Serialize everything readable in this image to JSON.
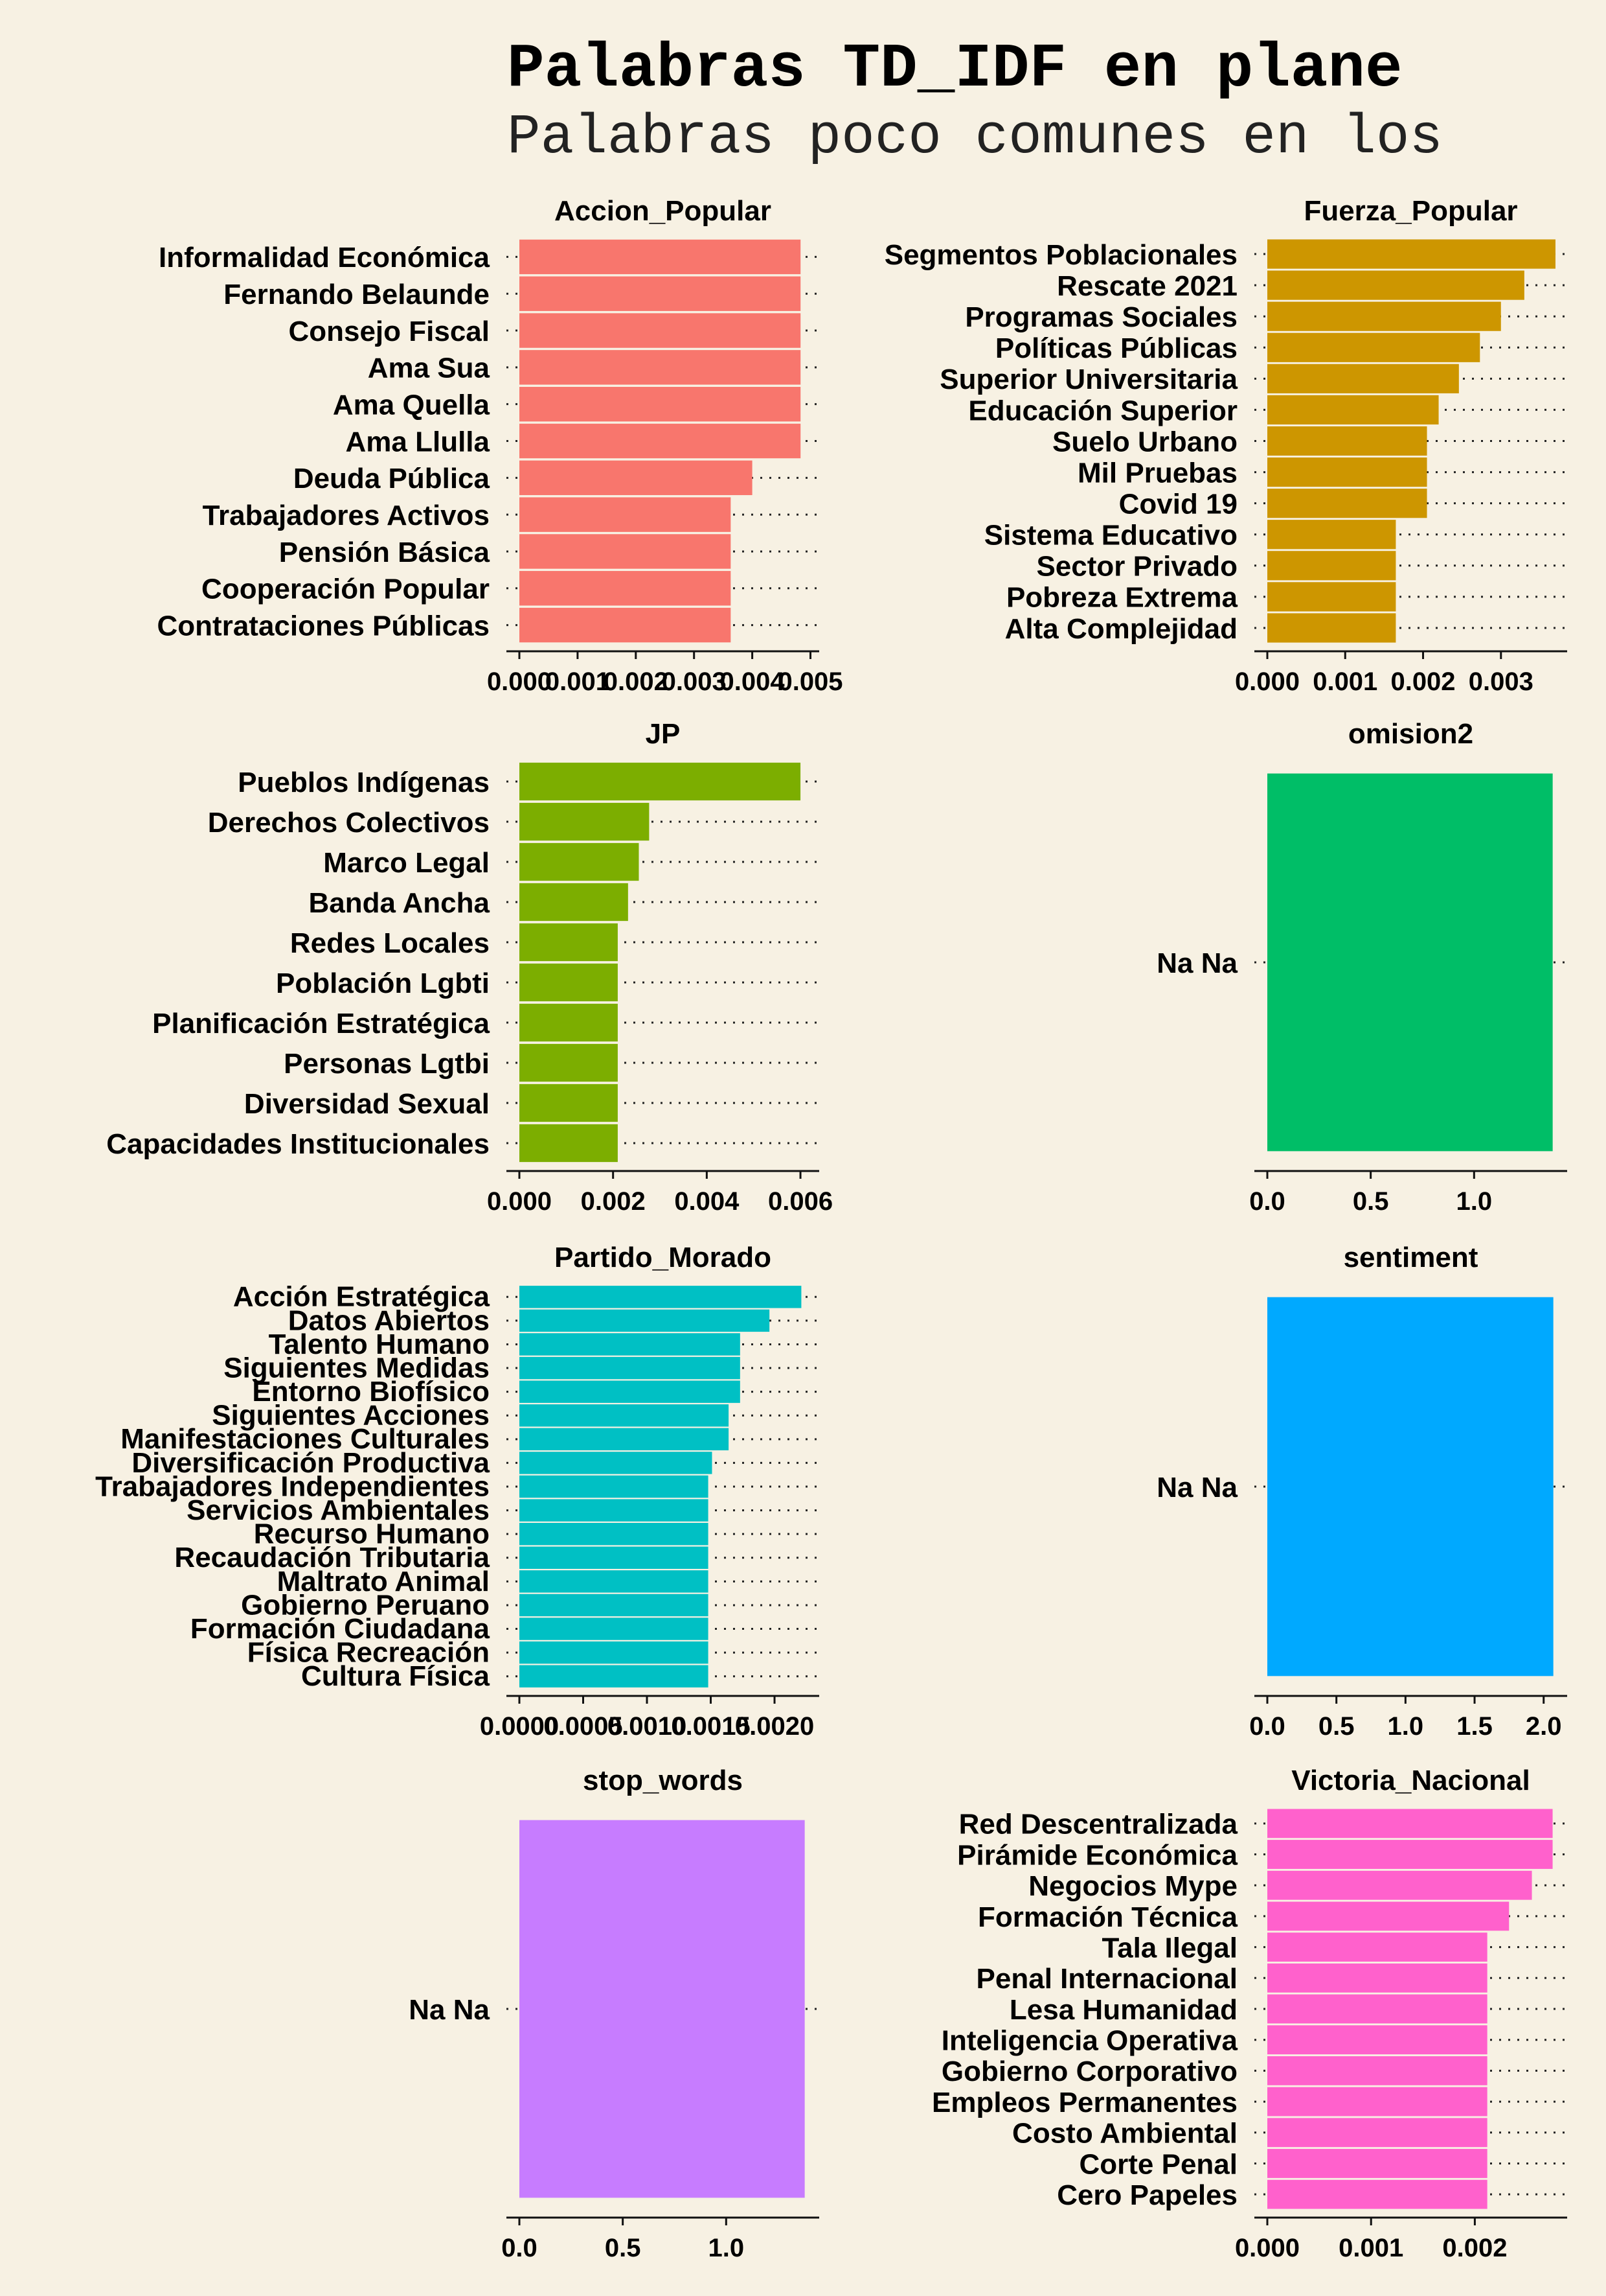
{
  "title": "Palabras TD_IDF en plane",
  "subtitle": "Palabras poco comunes en los",
  "colors": {
    "background": "#f7f1e3",
    "Accion_Popular": "#f8766d",
    "Fuerza_Popular": "#cd9600",
    "JP": "#7cae00",
    "omision2": "#00be67",
    "Partido_Morado": "#00c0c4",
    "sentiment": "#00a9ff",
    "stop_words": "#c77cff",
    "Victoria_Nacional": "#ff61cc"
  },
  "chart_data": [
    {
      "type": "bar",
      "orientation": "horizontal",
      "title": "Accion_Popular",
      "categories": [
        "Informalidad Económica",
        "Fernando Belaunde",
        "Consejo Fiscal",
        "Ama Sua",
        "Ama Quella",
        "Ama Llulla",
        "Deuda Pública",
        "Trabajadores Activos",
        "Pensión Básica",
        "Cooperación Popular",
        "Contrataciones Públicas"
      ],
      "values": [
        0.00483,
        0.00483,
        0.00483,
        0.00483,
        0.00483,
        0.00483,
        0.004,
        0.00363,
        0.00363,
        0.00363,
        0.00363
      ],
      "xlim": [
        0,
        0.00515
      ],
      "ticks": [
        0,
        0.001,
        0.002,
        0.003,
        0.004,
        0.005
      ],
      "tick_labels": [
        "0.000",
        "0.001",
        "0.002",
        "0.003",
        "0.004",
        "0.005"
      ]
    },
    {
      "type": "bar",
      "orientation": "horizontal",
      "title": "Fuerza_Popular",
      "categories": [
        "Segmentos Poblacionales",
        "Rescate 2021",
        "Programas Sociales",
        "Políticas Públicas",
        "Superior Universitaria",
        "Educación Superior",
        "Suelo Urbano",
        "Mil Pruebas",
        "Covid 19",
        "Sistema Educativo",
        "Sector Privado",
        "Pobreza Extrema",
        "Alta Complejidad"
      ],
      "values": [
        0.0037,
        0.0033,
        0.003,
        0.00273,
        0.00246,
        0.0022,
        0.00205,
        0.00205,
        0.00205,
        0.00165,
        0.00165,
        0.00165,
        0.00165
      ],
      "xlim": [
        0,
        0.00385
      ],
      "ticks": [
        0,
        0.001,
        0.002,
        0.003
      ],
      "tick_labels": [
        "0.000",
        "0.001",
        "0.002",
        "0.003"
      ]
    },
    {
      "type": "bar",
      "orientation": "horizontal",
      "title": "JP",
      "categories": [
        "Pueblos Indígenas",
        "Derechos Colectivos",
        "Marco Legal",
        "Banda Ancha",
        "Redes Locales",
        "Población Lgbti",
        "Planificación Estratégica",
        "Personas Lgtbi",
        "Diversidad Sexual",
        "Capacidades Institucionales"
      ],
      "values": [
        0.006,
        0.00277,
        0.00255,
        0.00232,
        0.0021,
        0.0021,
        0.0021,
        0.0021,
        0.0021,
        0.0021
      ],
      "xlim": [
        0,
        0.0064
      ],
      "ticks": [
        0,
        0.002,
        0.004,
        0.006
      ],
      "tick_labels": [
        "0.000",
        "0.002",
        "0.004",
        "0.006"
      ]
    },
    {
      "type": "bar",
      "orientation": "horizontal",
      "title": "omision2",
      "categories": [
        "Na Na"
      ],
      "values": [
        1.38
      ],
      "xlim": [
        0,
        1.45
      ],
      "ticks": [
        0,
        0.5,
        1.0
      ],
      "tick_labels": [
        "0.0",
        "0.5",
        "1.0"
      ]
    },
    {
      "type": "bar",
      "orientation": "horizontal",
      "title": "Partido_Morado",
      "categories": [
        "Acción Estratégica",
        "Datos Abiertos",
        "Talento Humano",
        "Siguientes Medidas",
        "Entorno Biofísico",
        "Siguientes Acciones",
        "Manifestaciones Culturales",
        "Diversificación Productiva",
        "Trabajadores Independientes",
        "Servicios Ambientales",
        "Recurso Humano",
        "Recaudación Tributaria",
        "Maltrato Animal",
        "Gobierno Peruano",
        "Formación Ciudadana",
        "Física Recreación",
        "Cultura Física"
      ],
      "values": [
        0.00221,
        0.00196,
        0.00173,
        0.00173,
        0.00173,
        0.00164,
        0.00164,
        0.00151,
        0.00148,
        0.00148,
        0.00148,
        0.00148,
        0.00148,
        0.00148,
        0.00148,
        0.00148,
        0.00148
      ],
      "xlim": [
        0,
        0.00235
      ],
      "ticks": [
        0,
        0.0005,
        0.001,
        0.0015,
        0.002
      ],
      "tick_labels": [
        "0.0000",
        "0.0005",
        "0.0010",
        "0.0015",
        "0.0020"
      ]
    },
    {
      "type": "bar",
      "orientation": "horizontal",
      "title": "sentiment",
      "categories": [
        "Na Na"
      ],
      "values": [
        2.07
      ],
      "xlim": [
        0,
        2.17
      ],
      "ticks": [
        0,
        0.5,
        1.0,
        1.5,
        2.0
      ],
      "tick_labels": [
        "0.0",
        "0.5",
        "1.0",
        "1.5",
        "2.0"
      ]
    },
    {
      "type": "bar",
      "orientation": "horizontal",
      "title": "stop_words",
      "categories": [
        "Na Na"
      ],
      "values": [
        1.38
      ],
      "xlim": [
        0,
        1.45
      ],
      "ticks": [
        0,
        0.5,
        1.0
      ],
      "tick_labels": [
        "0.0",
        "0.5",
        "1.0"
      ]
    },
    {
      "type": "bar",
      "orientation": "horizontal",
      "title": "Victoria_Nacional",
      "categories": [
        "Red Descentralizada",
        "Pirámide Económica",
        "Negocios Mype",
        "Formación Técnica",
        "Tala Ilegal",
        "Penal Internacional",
        "Lesa Humanidad",
        "Inteligencia Operativa",
        "Gobierno Corporativo",
        "Empleos Permanentes",
        "Costo Ambiental",
        "Corte Penal",
        "Cero Papeles"
      ],
      "values": [
        0.00275,
        0.00275,
        0.00255,
        0.00233,
        0.00212,
        0.00212,
        0.00212,
        0.00212,
        0.00212,
        0.00212,
        0.00212,
        0.00212,
        0.00212
      ],
      "xlim": [
        0,
        0.00289
      ],
      "ticks": [
        0,
        0.001,
        0.002
      ],
      "tick_labels": [
        "0.000",
        "0.001",
        "0.002"
      ]
    }
  ]
}
